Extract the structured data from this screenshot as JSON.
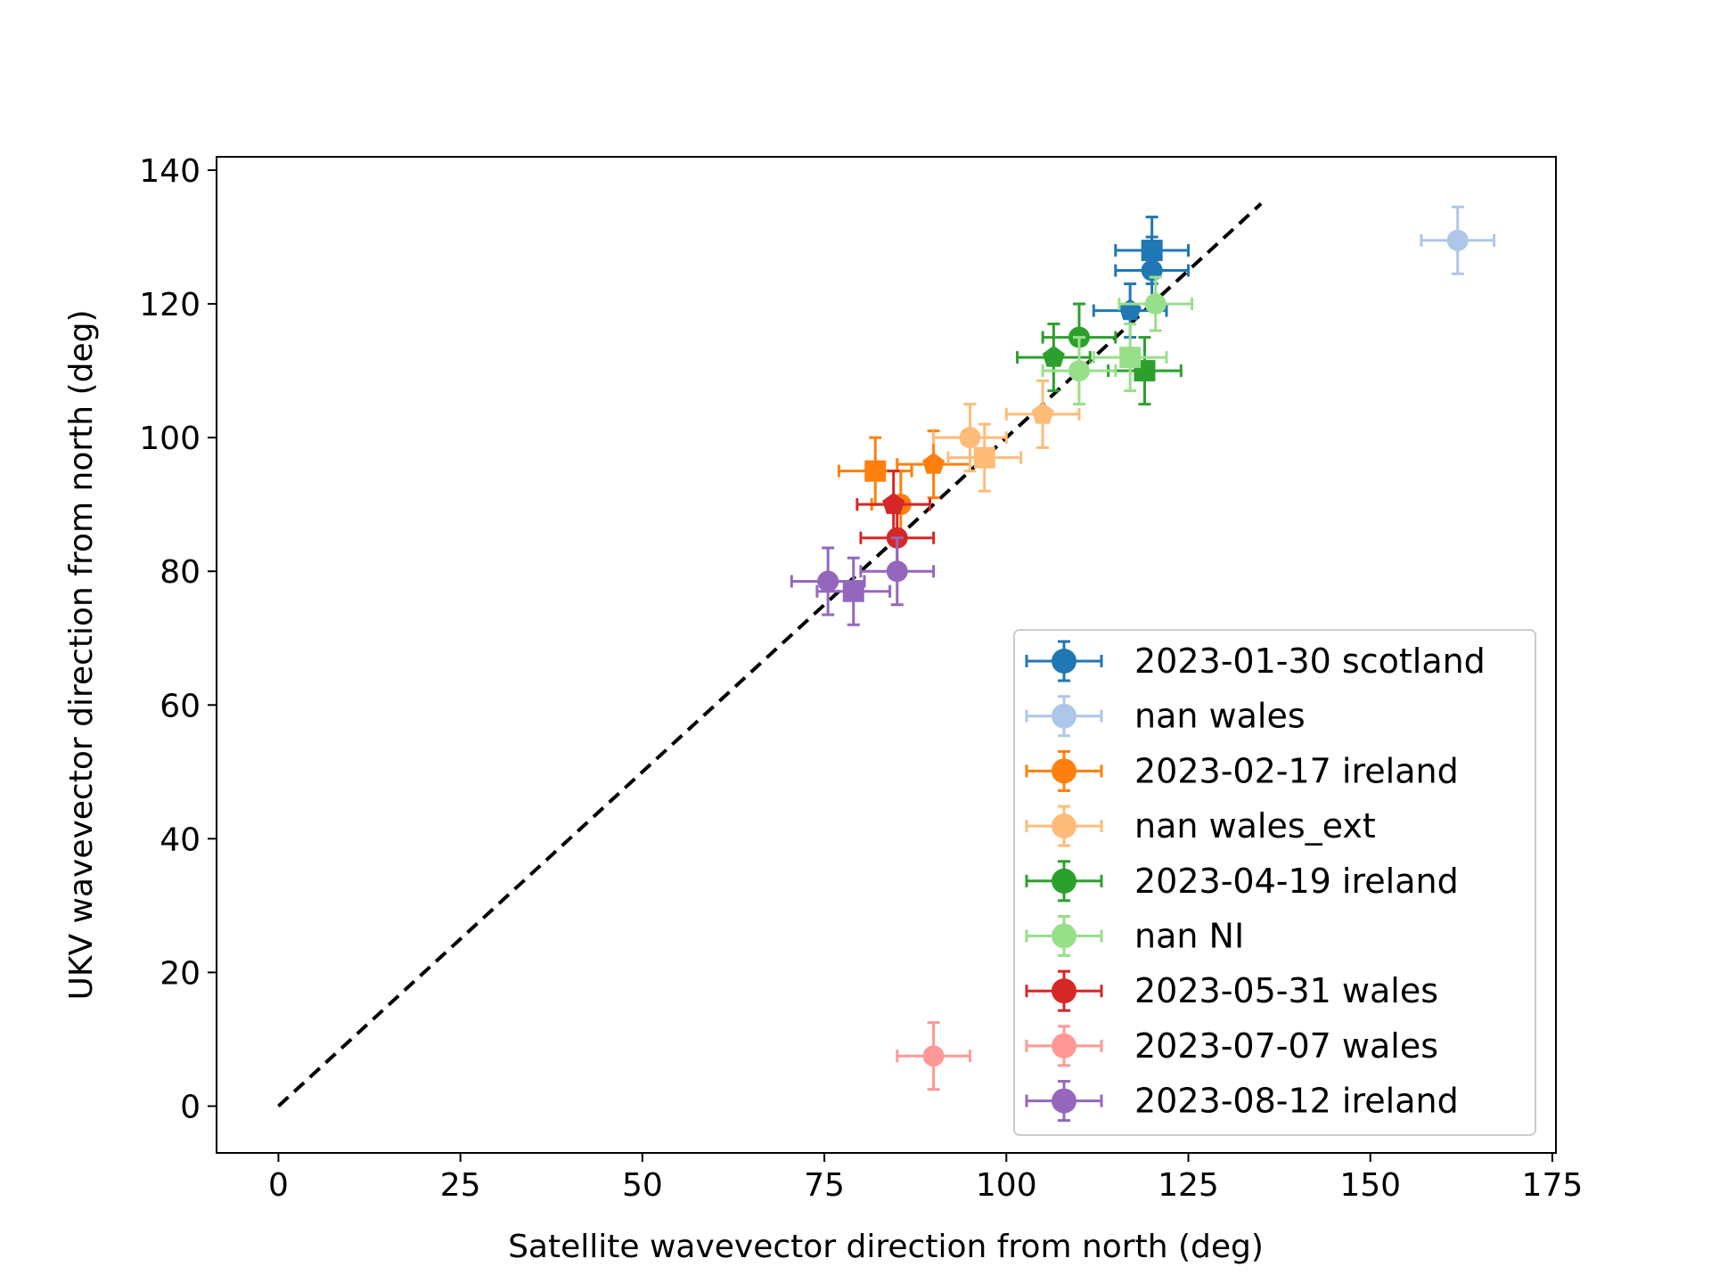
{
  "chart_data": {
    "type": "scatter",
    "xlabel": "Satellite wavevector direction from north (deg)",
    "ylabel": "UKV wavevector direction from north (deg)",
    "xlim": [
      -8.5,
      175.5
    ],
    "ylim": [
      -7,
      142
    ],
    "xticks": [
      0,
      25,
      50,
      75,
      100,
      125,
      150,
      175
    ],
    "yticks": [
      0,
      20,
      40,
      60,
      80,
      100,
      120,
      140
    ],
    "grid": false,
    "legend_position": "lower right",
    "reference_line": {
      "style": "dashed",
      "color": "#000000",
      "from": [
        0,
        0
      ],
      "to": [
        135,
        135
      ]
    },
    "series": [
      {
        "name": "2023-01-30 scotland",
        "color": "#1f77b4",
        "points": [
          {
            "x": 120,
            "y": 128,
            "xerr": 5,
            "yerr": 5,
            "marker": "square"
          },
          {
            "x": 120,
            "y": 125,
            "xerr": 5,
            "yerr": 5,
            "marker": "circle"
          },
          {
            "x": 117,
            "y": 119,
            "xerr": 5,
            "yerr": 4,
            "marker": "pentagon"
          }
        ]
      },
      {
        "name": "nan wales",
        "color": "#aec7e8",
        "points": [
          {
            "x": 162,
            "y": 129.5,
            "xerr": 5,
            "yerr": 5,
            "marker": "circle"
          }
        ]
      },
      {
        "name": "2023-02-17 ireland",
        "color": "#ff7f0e",
        "points": [
          {
            "x": 82,
            "y": 95,
            "xerr": 5,
            "yerr": 5,
            "marker": "square"
          },
          {
            "x": 90,
            "y": 96,
            "xerr": 5,
            "yerr": 5,
            "marker": "pentagon"
          },
          {
            "x": 85.5,
            "y": 90,
            "xerr": 4,
            "yerr": 5,
            "marker": "circle"
          }
        ]
      },
      {
        "name": "nan wales_ext",
        "color": "#ffbb78",
        "points": [
          {
            "x": 95,
            "y": 100,
            "xerr": 5,
            "yerr": 5,
            "marker": "circle"
          },
          {
            "x": 97,
            "y": 97,
            "xerr": 5,
            "yerr": 5,
            "marker": "square"
          },
          {
            "x": 105,
            "y": 103.5,
            "xerr": 5,
            "yerr": 5,
            "marker": "pentagon"
          }
        ]
      },
      {
        "name": "2023-04-19 ireland",
        "color": "#2ca02c",
        "points": [
          {
            "x": 110,
            "y": 115,
            "xerr": 5,
            "yerr": 5,
            "marker": "circle"
          },
          {
            "x": 106.5,
            "y": 112,
            "xerr": 5,
            "yerr": 5,
            "marker": "pentagon"
          },
          {
            "x": 119,
            "y": 110,
            "xerr": 5,
            "yerr": 5,
            "marker": "square"
          }
        ]
      },
      {
        "name": "nan NI",
        "color": "#98df8a",
        "points": [
          {
            "x": 120.5,
            "y": 120,
            "xerr": 5,
            "yerr": 4,
            "marker": "circle"
          },
          {
            "x": 110,
            "y": 110,
            "xerr": 5,
            "yerr": 5,
            "marker": "circle"
          },
          {
            "x": 117,
            "y": 112,
            "xerr": 5,
            "yerr": 5,
            "marker": "square"
          }
        ]
      },
      {
        "name": "2023-05-31 wales",
        "color": "#d62728",
        "points": [
          {
            "x": 85,
            "y": 85,
            "xerr": 5,
            "yerr": 5,
            "marker": "circle"
          },
          {
            "x": 84.5,
            "y": 90,
            "xerr": 5,
            "yerr": 5,
            "marker": "pentagon"
          }
        ]
      },
      {
        "name": "2023-07-07 wales",
        "color": "#ff9896",
        "points": [
          {
            "x": 90,
            "y": 7.5,
            "xerr": 5,
            "yerr": 5,
            "marker": "circle"
          }
        ]
      },
      {
        "name": "2023-08-12 ireland",
        "color": "#9467bd",
        "points": [
          {
            "x": 85,
            "y": 80,
            "xerr": 5,
            "yerr": 5,
            "marker": "circle"
          },
          {
            "x": 75.5,
            "y": 78.5,
            "xerr": 5,
            "yerr": 5,
            "marker": "circle"
          },
          {
            "x": 79,
            "y": 77,
            "xerr": 5,
            "yerr": 5,
            "marker": "square"
          }
        ]
      }
    ]
  }
}
